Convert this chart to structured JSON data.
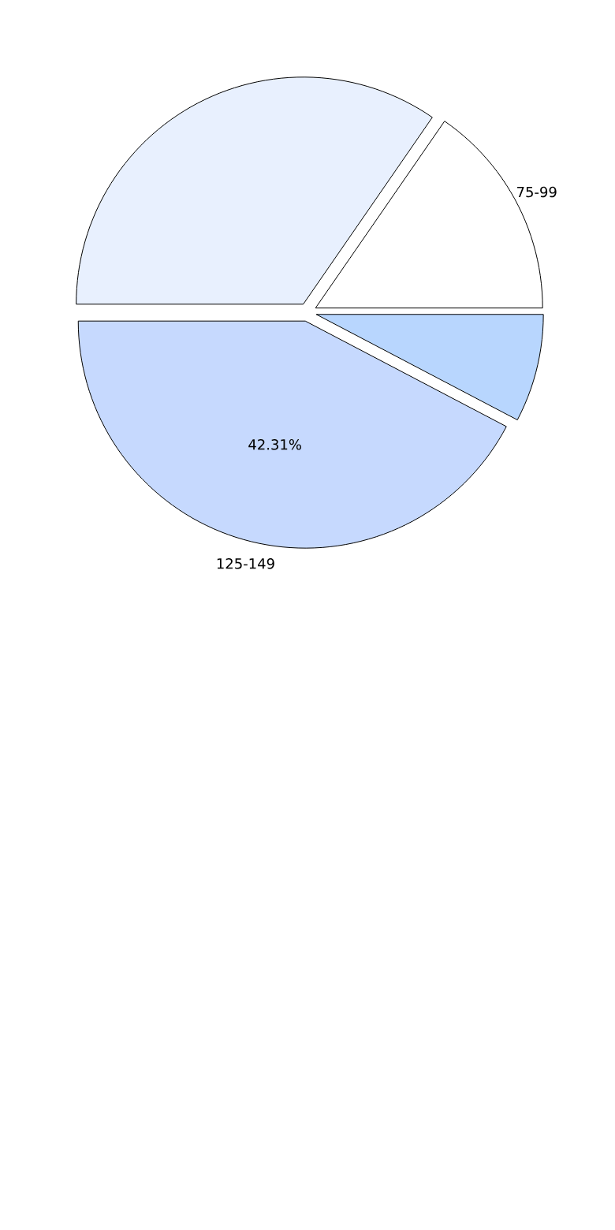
{
  "chart_data": {
    "type": "pie",
    "categories": [
      "75-99",
      null,
      "125-149",
      null
    ],
    "values": [
      15.38,
      34.62,
      42.31,
      7.69
    ],
    "colors": [
      "#ffffff",
      "#e8f0fe",
      "#c6d9fe",
      "#b8d6fe"
    ],
    "value_labels": [
      null,
      null,
      "42.31%",
      null
    ]
  }
}
